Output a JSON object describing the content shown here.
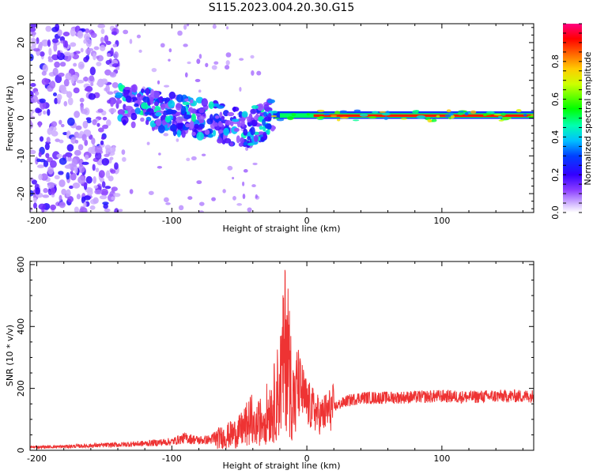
{
  "title": "S115.2023.004.20.30.G15",
  "colors": {
    "spectrum_colormap": [
      "#ffffff",
      "#e6d2ff",
      "#a066ff",
      "#6600ff",
      "#0000ff",
      "#0080ff",
      "#00ffff",
      "#00ff80",
      "#00ff00",
      "#80ff00",
      "#ffff00",
      "#ff8000",
      "#ff0000",
      "#ff0080"
    ],
    "snr_line": "#ee3333",
    "frame": "#000000"
  },
  "chart_data": [
    {
      "type": "heatmap",
      "xlabel": "Height of straight line (km)",
      "ylabel": "Frequency (Hz)",
      "xlim": [
        -205,
        168
      ],
      "ylim": [
        -25,
        25
      ],
      "x_ticks": [
        -200,
        -100,
        0,
        100
      ],
      "y_ticks": [
        -20,
        -10,
        0,
        10,
        20
      ],
      "colorbar": {
        "label": "Normalized spectral amplitude",
        "range": [
          0,
          1
        ],
        "ticks": [
          0.0,
          0.2,
          0.4,
          0.6,
          0.8
        ]
      },
      "features": [
        {
          "x_range": [
            -205,
            -140
          ],
          "description_freq_range": [
            -25,
            25
          ],
          "intensity": 0.15
        },
        {
          "x_range": [
            -140,
            -25
          ],
          "freq_center_start": 4,
          "freq_center_end": -4,
          "intensity": 0.3
        },
        {
          "x_range": [
            -25,
            168
          ],
          "freq_center": 0.5,
          "intensity": 0.95
        }
      ]
    },
    {
      "type": "line",
      "xlabel": "Height of straight line (km)",
      "ylabel": "SNR (10 * v/v)",
      "xlim": [
        -205,
        168
      ],
      "ylim": [
        0,
        610
      ],
      "x_ticks": [
        -200,
        -100,
        0,
        100
      ],
      "y_ticks": [
        0,
        200,
        400,
        600
      ],
      "series": [
        {
          "x": [
            -205,
            -180,
            -160,
            -140,
            -120,
            -100,
            -90,
            -80,
            -70,
            -60,
            -50,
            -40,
            -35,
            -30,
            -25,
            -20,
            -17,
            -15,
            -13,
            -10,
            -5,
            0,
            10,
            20,
            30,
            40,
            60,
            80,
            100,
            120,
            140,
            168
          ],
          "values": [
            10,
            12,
            15,
            18,
            22,
            28,
            40,
            32,
            35,
            45,
            60,
            100,
            140,
            180,
            220,
            320,
            450,
            600,
            400,
            250,
            200,
            150,
            110,
            140,
            160,
            170,
            170,
            172,
            175,
            172,
            175,
            175
          ]
        }
      ]
    }
  ]
}
